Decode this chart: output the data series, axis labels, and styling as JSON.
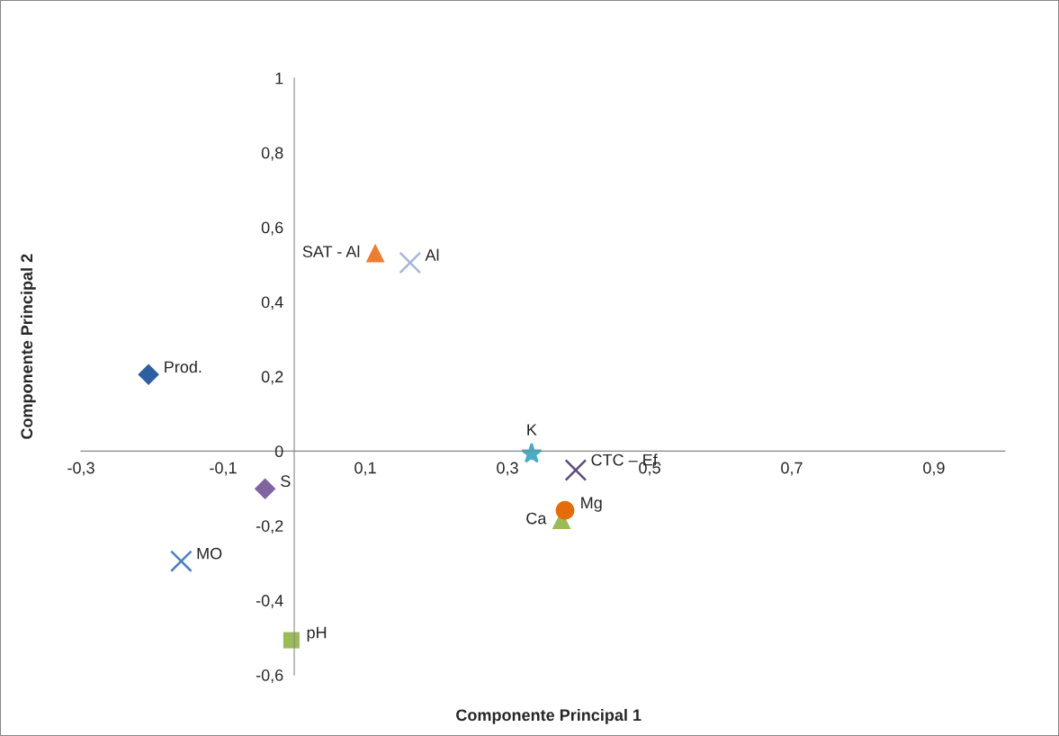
{
  "chart_data": {
    "type": "scatter",
    "xlabel": "Componente Principal 1",
    "ylabel": "Componente Principal 2",
    "xlim": [
      -0.3,
      1.0
    ],
    "xticks": [
      {
        "value": -0.3,
        "label": "-0,3"
      },
      {
        "value": -0.1,
        "label": "-0,1"
      },
      {
        "value": 0.1,
        "label": "0,1"
      },
      {
        "value": 0.3,
        "label": "0,3"
      },
      {
        "value": 0.5,
        "label": "0,5"
      },
      {
        "value": 0.7,
        "label": "0,7"
      },
      {
        "value": 0.9,
        "label": "0,9"
      }
    ],
    "ylim": [
      -0.6,
      1
    ],
    "yticks": [
      {
        "value": -0.6,
        "label": "-0,6"
      },
      {
        "value": -0.4,
        "label": "-0,4"
      },
      {
        "value": -0.2,
        "label": "-0,2"
      },
      {
        "value": 0,
        "label": "0"
      },
      {
        "value": 0.2,
        "label": "0,2"
      },
      {
        "value": 0.4,
        "label": "0,4"
      },
      {
        "value": 0.6,
        "label": "0,6"
      },
      {
        "value": 0.8,
        "label": "0,8"
      },
      {
        "value": 1,
        "label": "1"
      }
    ],
    "grid": false,
    "legend": false,
    "series": [
      {
        "name": "Prod.",
        "color": "#2e5fa0",
        "marker": "diamond",
        "x": [
          -0.205
        ],
        "values": [
          0.205
        ]
      },
      {
        "name": "SAT - Al",
        "color": "#ed7d31",
        "marker": "triangle",
        "x": [
          0.114
        ],
        "values": [
          0.531
        ]
      },
      {
        "name": "Al",
        "color": "#a5b6d8",
        "marker": "cross",
        "x": [
          0.163
        ],
        "values": [
          0.505
        ]
      },
      {
        "name": "K",
        "color": "#4bacc6",
        "marker": "star",
        "x": [
          0.334
        ],
        "values": [
          -0.007
        ]
      },
      {
        "name": "CTC – Ef.",
        "color": "#604a7b",
        "marker": "cross",
        "x": [
          0.396
        ],
        "values": [
          -0.051
        ]
      },
      {
        "name": "Ca",
        "color": "#9bbb59",
        "marker": "triangle",
        "x": [
          0.376
        ],
        "values": [
          -0.184
        ]
      },
      {
        "name": "Mg",
        "color": "#e46c0a",
        "marker": "circle",
        "x": [
          0.381
        ],
        "values": [
          -0.159
        ]
      },
      {
        "name": "S",
        "color": "#8064a2",
        "marker": "diamond",
        "x": [
          -0.041
        ],
        "values": [
          -0.101
        ]
      },
      {
        "name": "MO",
        "color": "#4f81bd",
        "marker": "cross",
        "x": [
          -0.159
        ],
        "values": [
          -0.295
        ]
      },
      {
        "name": "pH",
        "color": "#9bbb59",
        "marker": "square",
        "x": [
          -0.004
        ],
        "values": [
          -0.507
        ]
      }
    ]
  }
}
